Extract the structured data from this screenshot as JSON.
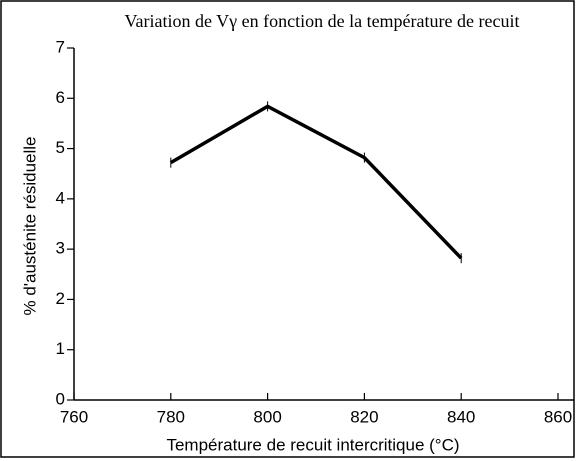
{
  "chart_data": {
    "type": "line",
    "title": "Variation de Vγ en fonction de la température de recuit",
    "x_label": "Température de recuit intercritique (°C)",
    "y_label": "% d'austénite résiduelle",
    "x": [
      780,
      800,
      820,
      840
    ],
    "series": [
      {
        "color": "#000000",
        "values": [
          4.72,
          5.84,
          4.82,
          2.82
        ],
        "errors": [
          0.1,
          0.1,
          0.1,
          0.1
        ]
      }
    ],
    "xlim": [
      760,
      860
    ],
    "xticks": [
      760,
      780,
      800,
      820,
      840,
      860
    ],
    "ylim": [
      0,
      7
    ],
    "yticks": [
      0,
      1,
      2,
      3,
      4,
      5,
      6,
      7
    ],
    "grid": false
  }
}
